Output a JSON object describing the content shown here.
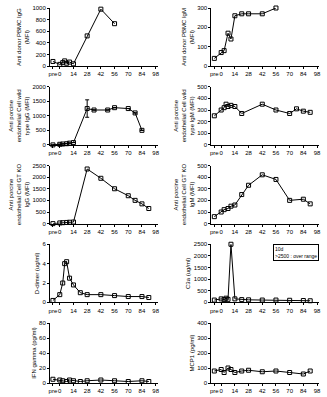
{
  "chart_data": [
    {
      "type": "line",
      "ylabel": "Anti donor PBMC IgG (MFI)",
      "x": [
        -7,
        0,
        3,
        5,
        7,
        10,
        14,
        28,
        42,
        56
      ],
      "values": [
        80,
        30,
        60,
        90,
        50,
        70,
        40,
        520,
        980,
        730
      ],
      "color": "#000000",
      "marker": "square-open",
      "xlim": [
        -10,
        100
      ],
      "xticks": [
        {
          "value": -7,
          "label": "pre"
        },
        0,
        14,
        28,
        42,
        56,
        70,
        84,
        98
      ],
      "ylim": [
        0,
        1000
      ],
      "yticks": [
        0,
        200,
        400,
        600,
        800,
        1000
      ]
    },
    {
      "type": "line",
      "ylabel": "Anti donor PBMC IgM (MFI)",
      "x": [
        -7,
        0,
        3,
        7,
        10,
        14,
        21,
        28,
        42,
        56
      ],
      "values": [
        40,
        70,
        80,
        170,
        140,
        260,
        270,
        270,
        270,
        300
      ],
      "color": "#000000",
      "marker": "square-open",
      "xlim": [
        -10,
        100
      ],
      "xticks": [
        {
          "value": -7,
          "label": "pre"
        },
        0,
        14,
        28,
        42,
        56,
        70,
        84,
        98
      ],
      "ylim": [
        0,
        300
      ],
      "yticks": [
        0,
        100,
        200,
        300
      ]
    },
    {
      "type": "line",
      "ylabel": "Anti porcine endothelial Cell wild type IgG (MFI)",
      "x": [
        -7,
        0,
        3,
        7,
        10,
        14,
        28,
        35,
        49,
        56,
        70,
        77,
        84
      ],
      "values": [
        0,
        20,
        30,
        40,
        60,
        80,
        1250,
        1200,
        1200,
        1280,
        1250,
        1100,
        500
      ],
      "error": [
        null,
        null,
        null,
        null,
        null,
        null,
        300,
        null,
        null,
        null,
        null,
        null,
        null
      ],
      "color": "#000000",
      "marker": "square-open",
      "xlim": [
        -10,
        100
      ],
      "xticks": [
        {
          "value": -7,
          "label": "pre"
        },
        0,
        14,
        28,
        42,
        56,
        70,
        84,
        98
      ],
      "ylim": [
        0,
        2000
      ],
      "yticks": [
        0,
        500,
        1000,
        1500,
        2000
      ]
    },
    {
      "type": "line",
      "ylabel": "Anti porcine endothelial Cell wild type IgM (MFI)",
      "x": [
        -7,
        0,
        3,
        5,
        7,
        10,
        14,
        21,
        42,
        56,
        70,
        77,
        84,
        91
      ],
      "values": [
        250,
        300,
        320,
        350,
        330,
        340,
        330,
        270,
        350,
        300,
        270,
        310,
        290,
        280
      ],
      "color": "#000000",
      "marker": "square-open",
      "xlim": [
        -10,
        100
      ],
      "xticks": [
        {
          "value": -7,
          "label": "pre"
        },
        0,
        14,
        28,
        42,
        56,
        70,
        84,
        98
      ],
      "ylim": [
        0,
        500
      ],
      "yticks": [
        0,
        100,
        200,
        300,
        400,
        500
      ]
    },
    {
      "type": "line",
      "ylabel": "Anti porcine endothelial Cell GT KO IgG (MFI)",
      "x": [
        -7,
        0,
        3,
        7,
        10,
        14,
        28,
        42,
        56,
        70,
        77,
        84,
        91
      ],
      "values": [
        0,
        30,
        40,
        50,
        60,
        70,
        2350,
        1950,
        1500,
        1200,
        1000,
        850,
        650
      ],
      "color": "#000000",
      "marker": "square-open",
      "xlim": [
        -10,
        100
      ],
      "xticks": [
        {
          "value": -7,
          "label": "pre"
        },
        0,
        14,
        28,
        42,
        56,
        70,
        84,
        98
      ],
      "ylim": [
        0,
        2500
      ],
      "yticks": [
        0,
        500,
        1000,
        1500,
        2000,
        2500
      ]
    },
    {
      "type": "line",
      "ylabel": "Anti porcine endothelial Cell GT KO IgM (MFI)",
      "x": [
        -7,
        0,
        3,
        7,
        10,
        14,
        21,
        28,
        42,
        56,
        70,
        84,
        91
      ],
      "values": [
        60,
        100,
        120,
        130,
        150,
        160,
        250,
        330,
        420,
        380,
        200,
        210,
        170
      ],
      "color": "#000000",
      "marker": "square-open",
      "xlim": [
        -10,
        100
      ],
      "xticks": [
        {
          "value": -7,
          "label": "pre"
        },
        0,
        14,
        28,
        42,
        56,
        70,
        84,
        98
      ],
      "ylim": [
        0,
        500
      ],
      "yticks": [
        0,
        100,
        200,
        300,
        400,
        500
      ]
    },
    {
      "type": "line",
      "ylabel": "D-dimer (ug/ml)",
      "x": [
        -7,
        0,
        3,
        5,
        7,
        10,
        14,
        21,
        28,
        42,
        56,
        70,
        84,
        91
      ],
      "values": [
        0.2,
        0.8,
        2.0,
        4.0,
        4.2,
        2.5,
        1.8,
        1.0,
        0.8,
        0.8,
        0.7,
        0.6,
        0.6,
        0.5
      ],
      "color": "#000000",
      "marker": "square-open",
      "xlim": [
        -10,
        100
      ],
      "xticks": [
        {
          "value": -7,
          "label": "pre"
        },
        0,
        14,
        28,
        42,
        56,
        70,
        84,
        98
      ],
      "ylim": [
        0,
        6
      ],
      "yticks": [
        0,
        2,
        4,
        6
      ]
    },
    {
      "type": "line",
      "ylabel": "C3a (ug/ml)",
      "annotations": [
        "10d",
        ">2500 : over range"
      ],
      "x": [
        -7,
        0,
        3,
        5,
        7,
        10,
        14,
        21,
        28,
        42,
        56,
        70,
        84,
        91
      ],
      "values": [
        100,
        150,
        120,
        180,
        130,
        2500,
        150,
        120,
        110,
        100,
        100,
        90,
        80,
        70
      ],
      "color": "#000000",
      "marker": "square-open",
      "xlim": [
        -10,
        100
      ],
      "xticks": [
        {
          "value": -7,
          "label": "pre"
        },
        0,
        14,
        28,
        42,
        56,
        70,
        84,
        98
      ],
      "ylim": [
        0,
        2500
      ],
      "yticks": [
        0,
        500,
        1000,
        1500,
        2000,
        2500
      ]
    },
    {
      "type": "line",
      "ylabel": "IFN gamma (pg/ml)",
      "x": [
        -7,
        0,
        3,
        7,
        10,
        14,
        21,
        28,
        42,
        56,
        70,
        84,
        91
      ],
      "values": [
        5,
        4,
        3,
        2,
        4,
        3,
        2,
        3,
        4,
        3,
        2,
        3,
        2
      ],
      "color": "#000000",
      "marker": "square-open",
      "xlim": [
        -10,
        100
      ],
      "xticks": [
        {
          "value": -7,
          "label": "pre"
        },
        0,
        14,
        28,
        42,
        56,
        70,
        84,
        98
      ],
      "ylim": [
        0,
        80
      ],
      "yticks": [
        0,
        20,
        40,
        60,
        80
      ]
    },
    {
      "type": "line",
      "ylabel": "MCP1 (pg/ml)",
      "x": [
        -7,
        0,
        3,
        7,
        10,
        14,
        21,
        28,
        42,
        56,
        70,
        84,
        91
      ],
      "values": [
        80,
        90,
        70,
        100,
        90,
        70,
        80,
        85,
        75,
        80,
        70,
        60,
        80
      ],
      "color": "#000000",
      "marker": "square-open",
      "xlim": [
        -10,
        100
      ],
      "xticks": [
        {
          "value": -7,
          "label": "pre"
        },
        0,
        14,
        28,
        42,
        56,
        70,
        84,
        98
      ],
      "ylim": [
        0,
        400
      ],
      "yticks": [
        0,
        100,
        200,
        300,
        400
      ]
    }
  ]
}
